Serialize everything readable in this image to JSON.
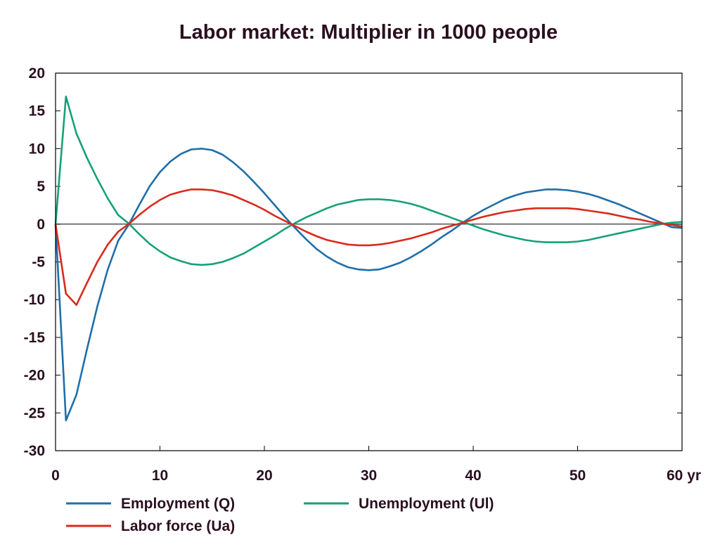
{
  "chart_data": {
    "type": "line",
    "title": "Labor market: Multiplier in 1000 people",
    "xlabel": "",
    "ylabel": "",
    "x_unit_label": "yr",
    "xlim": [
      0,
      60
    ],
    "ylim": [
      -30,
      20
    ],
    "x_ticks": [
      0,
      10,
      20,
      30,
      40,
      50,
      60
    ],
    "x_tick_labels": [
      "0",
      "10",
      "20",
      "30",
      "40",
      "50",
      "60 yr"
    ],
    "y_ticks": [
      20,
      15,
      10,
      5,
      0,
      -5,
      -10,
      -15,
      -20,
      -25,
      -30
    ],
    "y_tick_labels": [
      "20",
      "15",
      "10",
      "5",
      "0",
      "-5",
      "-10",
      "-15",
      "-20",
      "-25",
      "-30"
    ],
    "zero_line": true,
    "grid": false,
    "legend_position": "bottom",
    "series": [
      {
        "name": "Employment (Q)",
        "color": "#1f6fa8",
        "x": [
          0,
          1,
          2,
          3,
          4,
          5,
          6,
          7,
          8,
          9,
          10,
          11,
          12,
          13,
          14,
          15,
          16,
          17,
          18,
          19,
          20,
          21,
          22,
          23,
          24,
          25,
          26,
          27,
          28,
          29,
          30,
          31,
          32,
          33,
          34,
          35,
          36,
          37,
          38,
          39,
          40,
          41,
          42,
          43,
          44,
          45,
          46,
          47,
          48,
          49,
          50,
          51,
          52,
          53,
          54,
          55,
          56,
          57,
          58,
          59,
          60
        ],
        "y": [
          0,
          -26,
          -22.6,
          -16.6,
          -10.9,
          -6.0,
          -2.2,
          -0.1,
          2.5,
          5.0,
          6.9,
          8.3,
          9.3,
          9.9,
          10.0,
          9.8,
          9.2,
          8.2,
          7.0,
          5.6,
          4.1,
          2.5,
          0.9,
          -0.6,
          -2.0,
          -3.3,
          -4.3,
          -5.1,
          -5.7,
          -6.0,
          -6.1,
          -6.0,
          -5.6,
          -5.1,
          -4.4,
          -3.6,
          -2.7,
          -1.7,
          -0.8,
          0.2,
          1.1,
          1.9,
          2.6,
          3.3,
          3.8,
          4.2,
          4.4,
          4.6,
          4.6,
          4.5,
          4.3,
          4.0,
          3.6,
          3.1,
          2.6,
          2.0,
          1.4,
          0.8,
          0.2,
          -0.4,
          -0.5
        ]
      },
      {
        "name": "Unemployment (Ul)",
        "color": "#16a07a",
        "x": [
          0,
          1,
          2,
          3,
          4,
          5,
          6,
          7,
          8,
          9,
          10,
          11,
          12,
          13,
          14,
          15,
          16,
          17,
          18,
          19,
          20,
          21,
          22,
          23,
          24,
          25,
          26,
          27,
          28,
          29,
          30,
          31,
          32,
          33,
          34,
          35,
          36,
          37,
          38,
          39,
          40,
          41,
          42,
          43,
          44,
          45,
          46,
          47,
          48,
          49,
          50,
          51,
          52,
          53,
          54,
          55,
          56,
          57,
          58,
          59,
          60
        ],
        "y": [
          0,
          16.9,
          12.0,
          8.8,
          6.0,
          3.4,
          1.2,
          0.1,
          -1.3,
          -2.6,
          -3.6,
          -4.4,
          -4.9,
          -5.3,
          -5.4,
          -5.3,
          -5.0,
          -4.5,
          -3.9,
          -3.1,
          -2.3,
          -1.5,
          -0.6,
          0.2,
          0.9,
          1.5,
          2.1,
          2.6,
          2.9,
          3.2,
          3.3,
          3.3,
          3.2,
          3.0,
          2.7,
          2.3,
          1.8,
          1.3,
          0.8,
          0.3,
          -0.2,
          -0.7,
          -1.1,
          -1.5,
          -1.8,
          -2.1,
          -2.3,
          -2.4,
          -2.4,
          -2.4,
          -2.3,
          -2.1,
          -1.8,
          -1.5,
          -1.2,
          -0.9,
          -0.6,
          -0.3,
          0.0,
          0.2,
          0.3
        ]
      },
      {
        "name": "Labor force (Ua)",
        "color": "#d92a1c",
        "x": [
          0,
          1,
          2,
          3,
          4,
          5,
          6,
          7,
          8,
          9,
          10,
          11,
          12,
          13,
          14,
          15,
          16,
          17,
          18,
          19,
          20,
          21,
          22,
          23,
          24,
          25,
          26,
          27,
          28,
          29,
          30,
          31,
          32,
          33,
          34,
          35,
          36,
          37,
          38,
          39,
          40,
          41,
          42,
          43,
          44,
          45,
          46,
          47,
          48,
          49,
          50,
          51,
          52,
          53,
          54,
          55,
          56,
          57,
          58,
          59,
          60
        ],
        "y": [
          0,
          -9.2,
          -10.7,
          -7.8,
          -5.0,
          -2.7,
          -1.0,
          0.0,
          1.2,
          2.3,
          3.2,
          3.9,
          4.3,
          4.6,
          4.6,
          4.5,
          4.2,
          3.8,
          3.2,
          2.6,
          1.9,
          1.1,
          0.4,
          -0.3,
          -1.0,
          -1.6,
          -2.1,
          -2.4,
          -2.7,
          -2.8,
          -2.8,
          -2.7,
          -2.5,
          -2.2,
          -1.9,
          -1.5,
          -1.1,
          -0.6,
          -0.2,
          0.2,
          0.6,
          1.0,
          1.3,
          1.6,
          1.8,
          2.0,
          2.1,
          2.1,
          2.1,
          2.1,
          2.0,
          1.8,
          1.6,
          1.4,
          1.1,
          0.8,
          0.6,
          0.3,
          0.1,
          -0.1,
          -0.3
        ]
      }
    ],
    "legend": [
      {
        "name": "Employment (Q)",
        "color": "#1f6fa8"
      },
      {
        "name": "Unemployment (Ul)",
        "color": "#16a07a"
      },
      {
        "name": "Labor force (Ua)",
        "color": "#d92a1c"
      }
    ]
  }
}
